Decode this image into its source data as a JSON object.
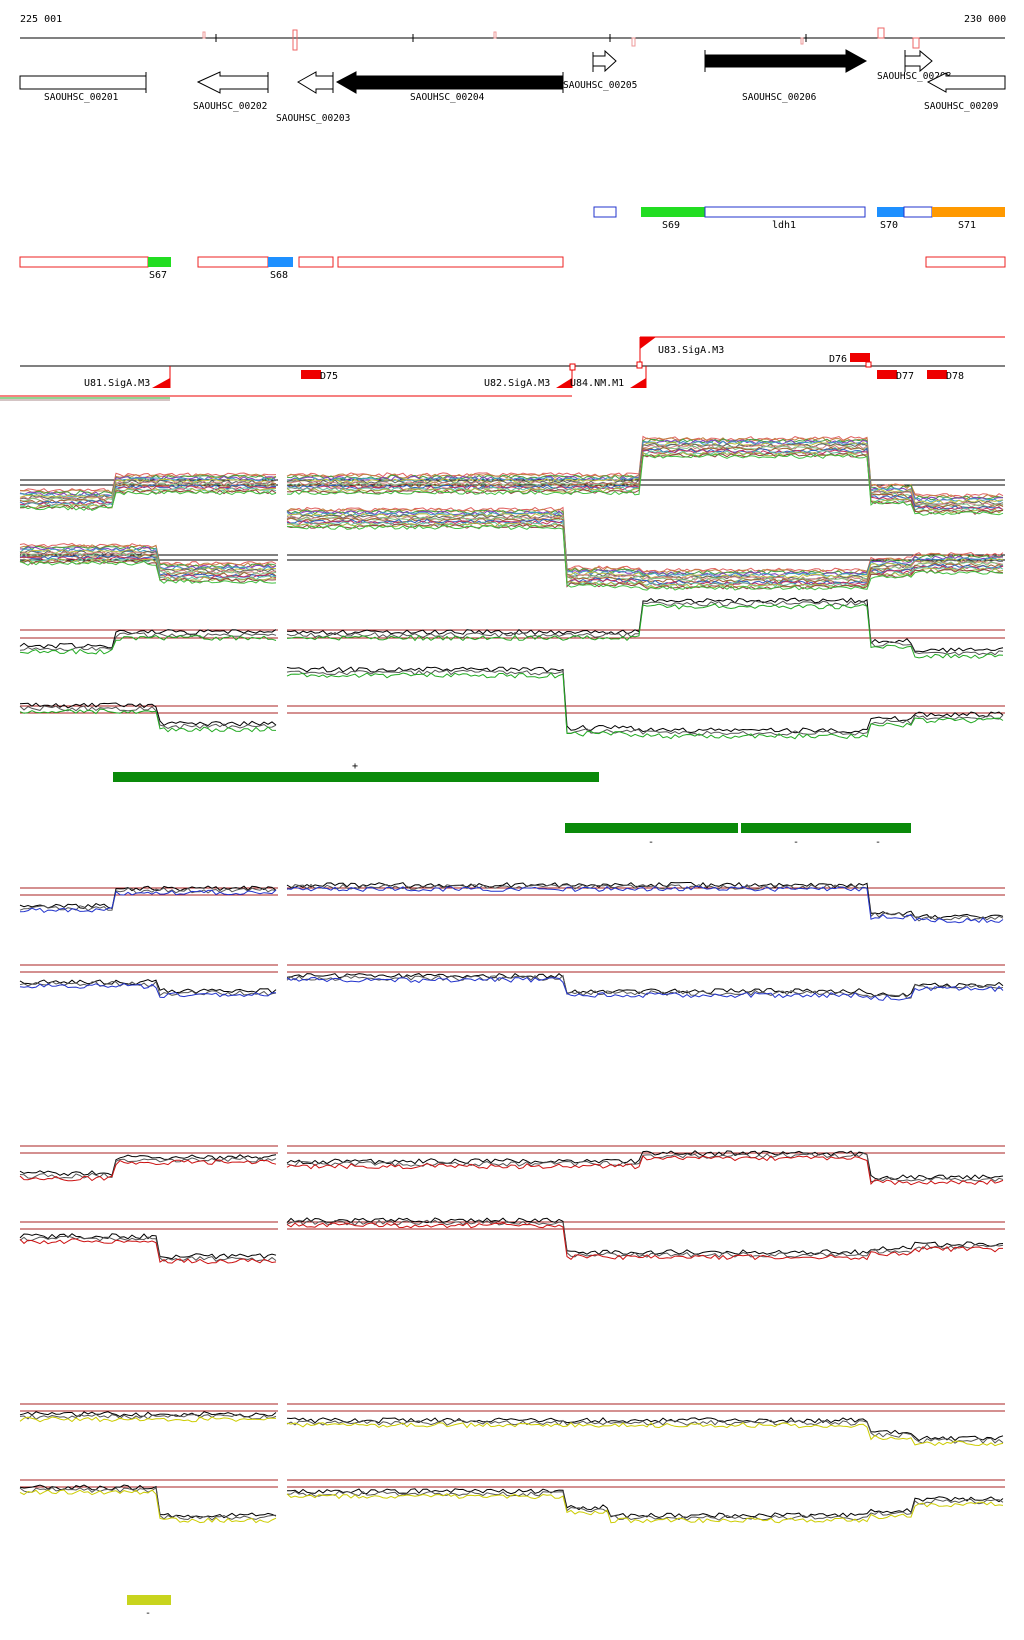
{
  "axis": {
    "start": "225 001",
    "end": "230 000"
  },
  "genes": [
    {
      "name": "SAOUHSC_00201"
    },
    {
      "name": "SAOUHSC_00202"
    },
    {
      "name": "SAOUHSC_00203"
    },
    {
      "name": "SAOUHSC_00204"
    },
    {
      "name": "SAOUHSC_00205"
    },
    {
      "name": "SAOUHSC_00206"
    },
    {
      "name": "SAOUHSC_00208"
    },
    {
      "name": "SAOUHSC_00209"
    }
  ],
  "segments_upper": [
    "S69",
    "ldh1",
    "S70",
    "S71"
  ],
  "segments_lower": [
    "S67",
    "S68"
  ],
  "promoters": [
    "U81.SigA.M3",
    "U82.SigA.M3",
    "U83.SigA.M3",
    "U84.NM.M1"
  ],
  "terminators": [
    "D75",
    "D76",
    "D77",
    "D78"
  ],
  "markers": {
    "plus": "+",
    "minus": "-"
  },
  "colors": {
    "green": "#0a8a0a",
    "bright_green": "#22dd22",
    "blue_seg": "#1e90ff",
    "orange": "#ff9900",
    "red": "#ee0000",
    "dark_red": "#aa2222",
    "blue_line": "#2233cc",
    "red_line": "#cc1111",
    "yellow_line": "#cccc00",
    "lime_bar": "#c8d41e"
  }
}
